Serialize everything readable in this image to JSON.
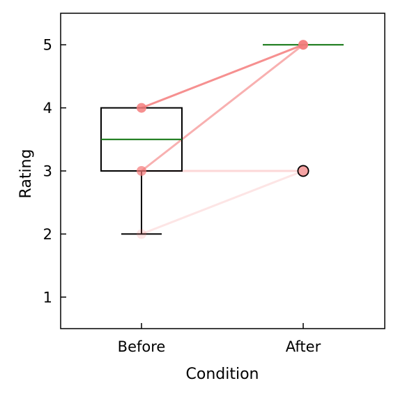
{
  "chart_data": {
    "type": "box",
    "categories": [
      "Before",
      "After"
    ],
    "xlabel": "Condition",
    "ylabel": "Rating",
    "ylim": [
      0.5,
      5.5
    ],
    "yticks": [
      1,
      2,
      3,
      4,
      5
    ],
    "grid": false,
    "boxes": [
      {
        "category": "Before",
        "whisker_low": 2,
        "q1": 3,
        "median": 3.5,
        "q3": 4,
        "whisker_high": 4,
        "outliers": []
      },
      {
        "category": "After",
        "whisker_low": 5,
        "q1": 5,
        "median": 5,
        "q3": 5,
        "whisker_high": 5,
        "outliers": [
          3
        ]
      }
    ],
    "paired_lines": [
      {
        "before": 4,
        "after": 5,
        "opacity": 0.85
      },
      {
        "before": 3,
        "after": 5,
        "opacity": 0.6
      },
      {
        "before": 3,
        "after": 3,
        "opacity": 0.3
      },
      {
        "before": 2,
        "after": 3,
        "opacity": 0.2
      }
    ],
    "colors": {
      "pair": "#f47c7c",
      "median": "#1a7a1a",
      "box": "#000000",
      "outlier_fill": "#f7c5c5"
    }
  }
}
